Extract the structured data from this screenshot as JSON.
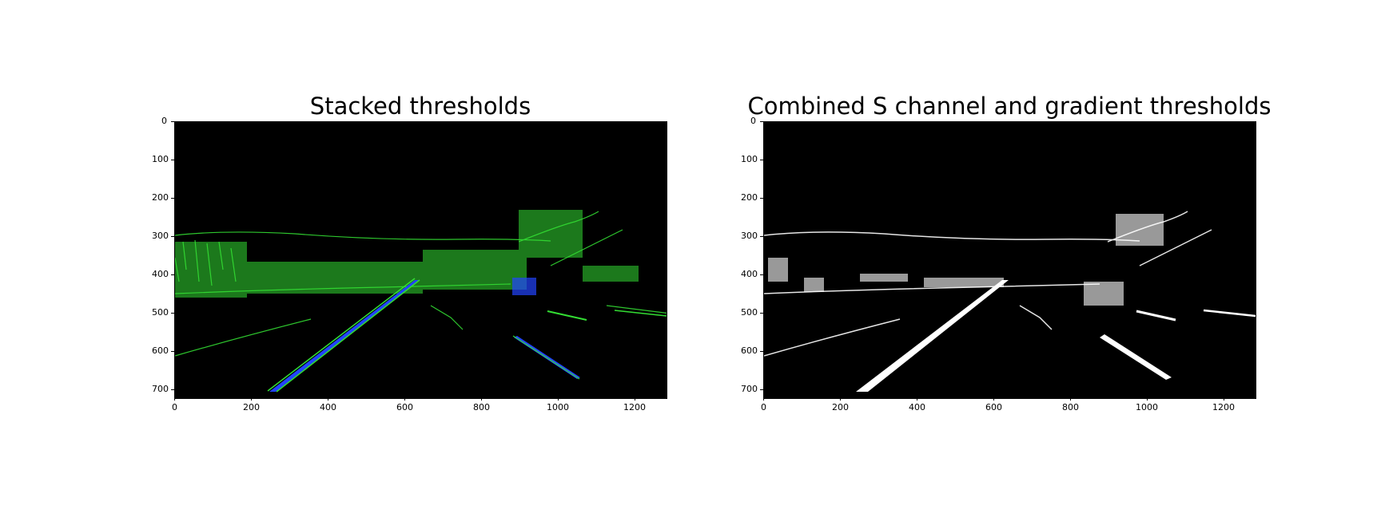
{
  "panels": [
    {
      "title": "Stacked thresholds",
      "x_ticks": [
        "0",
        "200",
        "400",
        "600",
        "800",
        "1000",
        "1200"
      ],
      "y_ticks": [
        "0",
        "100",
        "200",
        "300",
        "400",
        "500",
        "600",
        "700"
      ],
      "image_description_colors": {
        "background": "#000000",
        "edges": "#33dd33",
        "lane": "#2244ff"
      }
    },
    {
      "title": "Combined S channel and gradient thresholds",
      "x_ticks": [
        "0",
        "200",
        "400",
        "600",
        "800",
        "1000",
        "1200"
      ],
      "y_ticks": [
        "0",
        "100",
        "200",
        "300",
        "400",
        "500",
        "600",
        "700"
      ],
      "image_description_colors": {
        "background": "#000000",
        "edges": "#ffffff"
      }
    }
  ]
}
